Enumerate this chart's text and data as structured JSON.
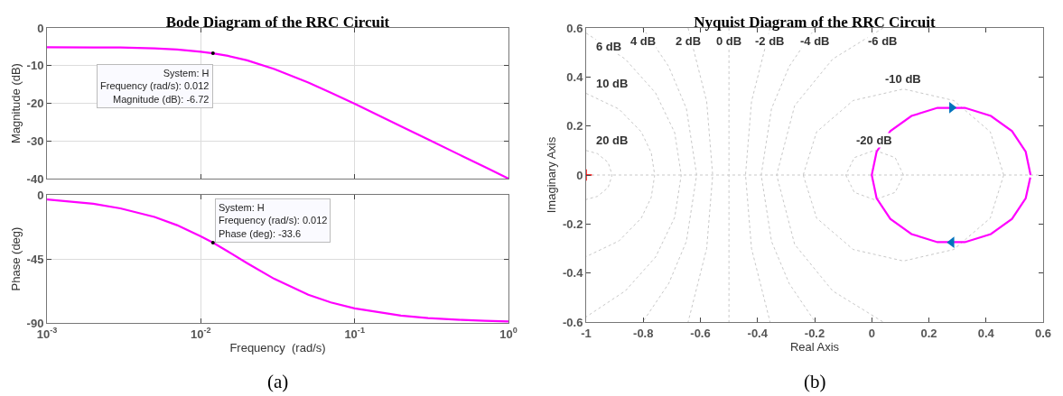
{
  "chart_data": [
    {
      "type": "line",
      "title": "Bode Diagram of the RRC Circuit",
      "ylabel": "Magnitude (dB)",
      "log": "x",
      "grid": true,
      "tick_labels": "y",
      "x": [
        0.001,
        0.002,
        0.003,
        0.005,
        0.007,
        0.01,
        0.012,
        0.015,
        0.02,
        0.03,
        0.05,
        0.07,
        0.1,
        0.2,
        0.3,
        0.5,
        0.7,
        1
      ],
      "series": [
        {
          "color": "#ff00ff",
          "values": [
            -5.1,
            -5.2,
            -5.2,
            -5.4,
            -5.7,
            -6.3,
            -6.72,
            -7.4,
            -8.6,
            -10.9,
            -14.5,
            -17.2,
            -20.1,
            -26.1,
            -29.6,
            -34.0,
            -36.9,
            -40.0
          ]
        }
      ],
      "xlim": [
        0.001,
        1
      ],
      "xticks": [
        {
          "value": 0.001,
          "label": null
        },
        {
          "value": 0.01,
          "label": null
        },
        {
          "value": 0.1,
          "label": null
        },
        {
          "value": 1,
          "label": null
        }
      ],
      "ylim": [
        -40,
        0
      ],
      "yticks": [
        -40,
        -30,
        -20,
        -10,
        0
      ],
      "annotations": [
        {
          "text": "System: H\nFrequency (rad/s): 0.012\nMagnitude (dB): -6.72",
          "x": 0.012,
          "y": -6.72
        }
      ]
    },
    {
      "type": "line",
      "xlabel": "Frequency  (rad/s)",
      "ylabel": "Phase (deg)",
      "log": "x",
      "grid": true,
      "x": [
        0.001,
        0.002,
        0.003,
        0.005,
        0.007,
        0.01,
        0.012,
        0.015,
        0.02,
        0.03,
        0.05,
        0.07,
        0.1,
        0.2,
        0.3,
        0.5,
        0.7,
        1
      ],
      "series": [
        {
          "color": "#ff00ff",
          "values": [
            -3.2,
            -6.3,
            -9.5,
            -15.5,
            -21.3,
            -29.1,
            -33.6,
            -39.8,
            -48.0,
            -59.0,
            -70.2,
            -75.6,
            -79.8,
            -84.9,
            -86.6,
            -87.9,
            -88.5,
            -89.0
          ]
        }
      ],
      "xlim": [
        0.001,
        1
      ],
      "xticks": [
        {
          "value": 0.001,
          "label": "10$^{-3}$"
        },
        {
          "value": 0.01,
          "label": "10$^{-2}$"
        },
        {
          "value": 0.1,
          "label": "10$^{-1}$"
        },
        {
          "value": 1,
          "label": "10$^{0}$"
        }
      ],
      "ylim": [
        -90,
        0
      ],
      "yticks": [
        -90,
        -45,
        0
      ],
      "annotations": [
        {
          "text": "System: H\nFrequency (rad/s): 0.012\nPhase (deg): -33.6",
          "x": 0.012,
          "y": -33.6
        },
        "(a)"
      ]
    },
    {
      "type": "line",
      "title": "Nyquist Diagram of the RRC Circuit",
      "xlabel": "Real Axis",
      "ylabel": "Imaginary Axis",
      "xlim": [
        -1,
        0.6
      ],
      "xticks": [
        -1,
        -0.8,
        -0.6,
        -0.4,
        -0.2,
        0,
        0.2,
        0.4,
        0.6
      ],
      "ylim": [
        -0.6,
        0.6
      ],
      "yticks": [
        -0.6,
        -0.4,
        -0.2,
        0,
        0.2,
        0.4,
        0.6
      ],
      "series": [
        {
          "name": "20 dB",
          "color": "#c8c8c8",
          "line_style": "dotted",
          "x": [
            -1,
            -0.96,
            -0.923,
            -0.909,
            -0.923,
            -0.96,
            -1
          ],
          "values": [
            0.1,
            0.087,
            0.051,
            0,
            -0.051,
            -0.087,
            -0.1
          ]
        },
        {
          "name": "10 dB",
          "color": "#c8c8c8",
          "line_style": "dotted",
          "x": [
            -1,
            -0.885,
            -0.807,
            -0.772,
            -0.76,
            -0.772,
            -0.807,
            -0.885,
            -1
          ],
          "values": [
            0.333,
            0.269,
            0.176,
            0.091,
            0,
            -0.091,
            -0.176,
            -0.269,
            -0.333
          ]
        },
        {
          "name": "6 dB",
          "color": "#c8c8c8",
          "line_style": "dotted",
          "x": [
            -1,
            -0.863,
            -0.757,
            -0.69,
            -0.667,
            -0.69,
            -0.757,
            -0.863,
            -1
          ],
          "values": [
            0.579,
            0.473,
            0.335,
            0.173,
            0,
            -0.173,
            -0.335,
            -0.473,
            -0.579
          ]
        },
        {
          "name": "4 dB",
          "color": "#c8c8c8",
          "line_style": "dotted",
          "x": [
            -0.802,
            -0.711,
            -0.649,
            -0.613,
            -0.649,
            -0.711,
            -0.802
          ],
          "values": [
            0.6,
            0.443,
            0.271,
            0,
            -0.271,
            -0.443,
            -0.6
          ]
        },
        {
          "name": "2 dB",
          "color": "#c8c8c8",
          "line_style": "dotted",
          "x": [
            -0.643,
            -0.578,
            -0.557,
            -0.578,
            -0.643
          ],
          "values": [
            0.6,
            0.3,
            0,
            -0.3,
            -0.6
          ]
        },
        {
          "name": "0 dB",
          "color": "#c8c8c8",
          "line_style": "dotted",
          "x": [
            -0.5,
            -0.5
          ],
          "values": [
            0.6,
            -0.6
          ]
        },
        {
          "name": "-2 dB",
          "color": "#c8c8c8",
          "line_style": "dotted",
          "x": [
            -0.356,
            -0.421,
            -0.442,
            -0.421,
            -0.356
          ],
          "values": [
            0.6,
            0.3,
            0,
            -0.3,
            -0.6
          ]
        },
        {
          "name": "-4 dB",
          "color": "#c8c8c8",
          "line_style": "dotted",
          "x": [
            -0.198,
            -0.289,
            -0.351,
            -0.387,
            -0.351,
            -0.289,
            -0.198
          ],
          "values": [
            0.6,
            0.443,
            0.271,
            0,
            -0.271,
            -0.443,
            -0.6
          ]
        },
        {
          "name": "-6 dB",
          "color": "#c8c8c8",
          "line_style": "dotted",
          "x": [
            0.04,
            -0.137,
            -0.27,
            -0.333,
            -0.27,
            -0.137,
            0.04
          ],
          "values": [
            0.6,
            0.473,
            0.283,
            0,
            -0.283,
            -0.473,
            -0.6
          ]
        },
        {
          "name": "-10 dB",
          "color": "#c8c8c8",
          "line_style": "dotted",
          "x": [
            0.462,
            0.415,
            0.287,
            0.111,
            -0.065,
            -0.193,
            -0.24
          ],
          "values": [
            0,
            0.176,
            0.304,
            0.351,
            0.304,
            0.176,
            0
          ]
        },
        {
          "color": "#c8c8c8",
          "line_style": "dotted",
          "x": [
            -0.24,
            -0.193,
            -0.065,
            0.111,
            0.287,
            0.415,
            0.462
          ],
          "values": [
            0,
            -0.176,
            -0.304,
            -0.351,
            -0.304,
            -0.176,
            0
          ]
        },
        {
          "name": "-20 dB",
          "color": "#c8c8c8",
          "line_style": "dotted",
          "x": [
            0.111,
            0.082,
            0.01,
            -0.061,
            -0.091
          ],
          "values": [
            0,
            0.071,
            0.101,
            0.071,
            0
          ]
        },
        {
          "color": "#c8c8c8",
          "line_style": "dotted",
          "x": [
            -0.091,
            -0.061,
            0.01,
            0.082,
            0.111
          ],
          "values": [
            0,
            -0.071,
            -0.101,
            -0.071,
            0
          ]
        },
        {
          "color": "#ff00ff",
          "x": [
            0.556,
            0.539,
            0.491,
            0.417,
            0.326,
            0.23,
            0.139,
            0.065,
            0.017,
            0,
            0.017,
            0.065,
            0.139,
            0.23,
            0.326,
            0.417,
            0.491,
            0.539,
            0.555
          ],
          "values": [
            0,
            0.095,
            0.179,
            0.241,
            0.274,
            0.274,
            0.241,
            0.179,
            0.095,
            0,
            -0.095,
            -0.179,
            -0.241,
            -0.274,
            -0.274,
            -0.241,
            -0.179,
            -0.095,
            -0.01
          ]
        },
        {
          "type": "scatter",
          "marker": "triangle",
          "color": "#0072bd",
          "x": [
            0.28,
            0.28
          ],
          "values": [
            0.275,
            -0.275
          ]
        },
        {
          "type": "scatter",
          "marker": "cross",
          "color": "#ff0000",
          "x": [
            -1
          ],
          "values": [
            0
          ]
        }
      ],
      "ref_lines": [
        {
          "axis": "y",
          "value": 0,
          "color": "#c8c8c8",
          "line_style": "dotted"
        }
      ],
      "annotations": [
        "(b)"
      ]
    }
  ]
}
